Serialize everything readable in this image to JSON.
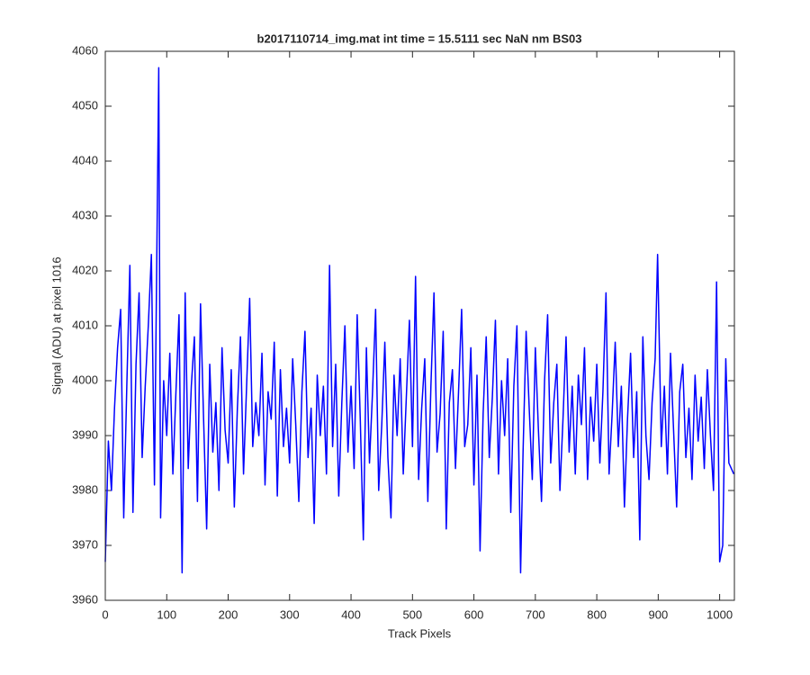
{
  "chart_data": {
    "type": "line",
    "title": "b2017110714_img.mat int time = 15.5111 sec  NaN nm BS03",
    "x_label": "Track Pixels",
    "y_label": "Signal (ADU) at pixel 1016",
    "xlim": [
      0,
      1024
    ],
    "ylim": [
      3960,
      4060
    ],
    "xticks": [
      0,
      100,
      200,
      300,
      400,
      500,
      600,
      700,
      800,
      900,
      1000
    ],
    "yticks": [
      3960,
      3970,
      3980,
      3990,
      4000,
      4010,
      4020,
      4030,
      4040,
      4050,
      4060
    ],
    "x": [
      0,
      5,
      10,
      15,
      20,
      25,
      30,
      35,
      40,
      45,
      50,
      55,
      60,
      65,
      70,
      75,
      80,
      87,
      90,
      95,
      100,
      105,
      110,
      115,
      120,
      125,
      130,
      135,
      140,
      145,
      150,
      155,
      160,
      165,
      170,
      175,
      180,
      185,
      190,
      195,
      200,
      205,
      210,
      215,
      220,
      225,
      230,
      235,
      240,
      245,
      250,
      255,
      260,
      265,
      270,
      275,
      280,
      285,
      290,
      295,
      300,
      305,
      310,
      315,
      320,
      325,
      330,
      335,
      340,
      345,
      350,
      355,
      360,
      365,
      370,
      375,
      380,
      385,
      390,
      395,
      400,
      405,
      410,
      415,
      420,
      425,
      430,
      435,
      440,
      445,
      450,
      455,
      460,
      465,
      470,
      475,
      480,
      485,
      490,
      495,
      500,
      505,
      510,
      515,
      520,
      525,
      530,
      535,
      540,
      545,
      550,
      555,
      560,
      565,
      570,
      575,
      580,
      585,
      590,
      595,
      600,
      605,
      610,
      615,
      620,
      625,
      630,
      635,
      640,
      645,
      650,
      655,
      660,
      665,
      670,
      676,
      680,
      685,
      690,
      695,
      700,
      705,
      710,
      715,
      720,
      725,
      730,
      735,
      740,
      745,
      750,
      755,
      760,
      765,
      770,
      775,
      780,
      785,
      790,
      795,
      800,
      805,
      810,
      815,
      820,
      825,
      830,
      835,
      840,
      845,
      850,
      855,
      860,
      865,
      870,
      875,
      880,
      885,
      890,
      895,
      899,
      905,
      910,
      915,
      920,
      925,
      930,
      935,
      940,
      945,
      950,
      955,
      960,
      965,
      970,
      975,
      980,
      985,
      990,
      995,
      1000,
      1005,
      1010,
      1015,
      1023
    ],
    "series": [
      {
        "color": "#0000ff",
        "values": [
          3967,
          3989,
          3980,
          3995,
          4006,
          4013,
          3975,
          3999,
          4021,
          3976,
          4003,
          4016,
          3986,
          3999,
          4010,
          4023,
          3981,
          4057,
          3975,
          4000,
          3990,
          4005,
          3983,
          3998,
          4012,
          3965,
          4016,
          3984,
          3999,
          4008,
          3978,
          4014,
          3993,
          3973,
          4003,
          3987,
          3996,
          3980,
          4006,
          3991,
          3985,
          4002,
          3977,
          3995,
          4008,
          3983,
          3999,
          4015,
          3988,
          3996,
          3990,
          4005,
          3981,
          3998,
          3993,
          4007,
          3979,
          4002,
          3988,
          3995,
          3985,
          4004,
          3992,
          3978,
          3998,
          4009,
          3986,
          3995,
          3974,
          4001,
          3990,
          3999,
          3983,
          4021,
          3988,
          4003,
          3979,
          3996,
          4010,
          3987,
          3999,
          3984,
          4012,
          3993,
          3971,
          4006,
          3985,
          3998,
          4013,
          3980,
          3992,
          4007,
          3986,
          3975,
          4001,
          3990,
          4004,
          3983,
          3997,
          4011,
          3988,
          4019,
          3982,
          3995,
          4004,
          3978,
          3999,
          4016,
          3987,
          3994,
          4009,
          3973,
          3996,
          4002,
          3984,
          3998,
          4013,
          3988,
          3992,
          4006,
          3981,
          4001,
          3969,
          3994,
          4008,
          3986,
          3997,
          4011,
          3983,
          4000,
          3990,
          4004,
          3976,
          3999,
          4010,
          3965,
          3987,
          4009,
          3995,
          3982,
          4006,
          3991,
          3978,
          4000,
          4012,
          3985,
          3996,
          4003,
          3980,
          3993,
          4008,
          3987,
          3999,
          3983,
          4001,
          3992,
          4006,
          3982,
          3997,
          3989,
          4003,
          3985,
          3998,
          4016,
          3983,
          3994,
          4007,
          3988,
          3999,
          3977,
          3993,
          4005,
          3986,
          3998,
          3971,
          4008,
          3990,
          3982,
          3996,
          4004,
          4023,
          3988,
          3999,
          3983,
          4005,
          3991,
          3977,
          3998,
          4003,
          3986,
          3995,
          3982,
          4001,
          3989,
          3997,
          3984,
          4002,
          3990,
          3980,
          4018,
          3967,
          3970,
          4004,
          3985,
          3983
        ]
      }
    ]
  }
}
